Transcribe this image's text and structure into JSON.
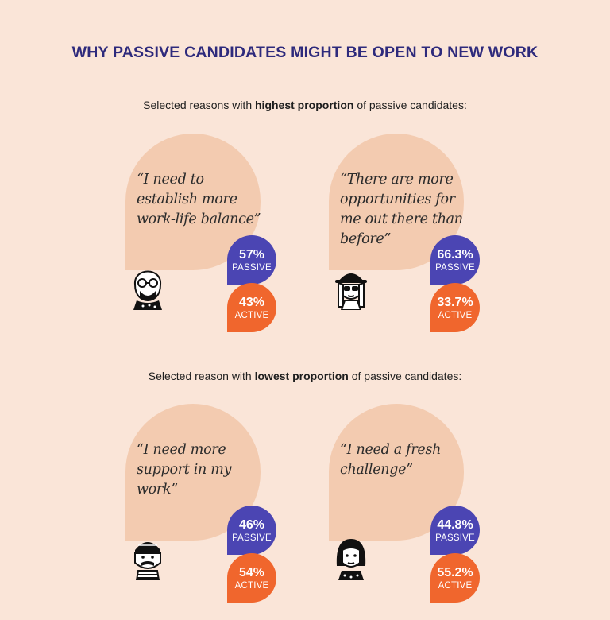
{
  "title": "WHY PASSIVE CANDIDATES MIGHT BE OPEN TO NEW WORK",
  "section_high": {
    "pre": "Selected reasons with ",
    "bold": "highest proportion",
    "post": " of passive candidates:"
  },
  "section_low": {
    "pre": "Selected reason with ",
    "bold": "lowest proportion",
    "post": " of passive candidates:"
  },
  "passive_label": "PASSIVE",
  "active_label": "ACTIVE",
  "colors": {
    "passive": "#4b45b3",
    "active": "#f0662d",
    "title": "#2e2a7c",
    "blob": "#f3cbb0"
  },
  "cards": [
    {
      "quote": "“I need to establish more work-life balance”",
      "passive": "57%",
      "active": "43%",
      "icon": "bald-man-glasses-icon"
    },
    {
      "quote": "“There are more opportunities for me out there than before”",
      "passive": "66.3%",
      "active": "33.7%",
      "icon": "woman-hat-sunglasses-icon"
    },
    {
      "quote": "“I need more support in my work”",
      "passive": "46%",
      "active": "54%",
      "icon": "man-beanie-mustache-icon"
    },
    {
      "quote": "“I need a fresh challenge”",
      "passive": "44.8%",
      "active": "55.2%",
      "icon": "woman-bob-hair-icon"
    }
  ]
}
